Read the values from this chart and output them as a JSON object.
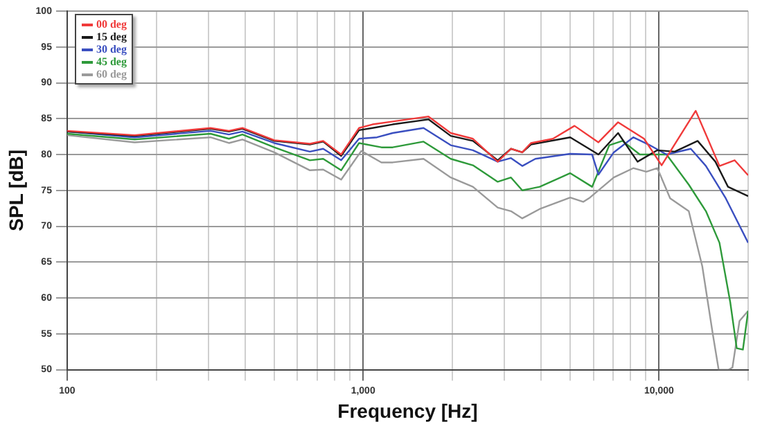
{
  "chart_data": {
    "type": "line",
    "xlabel": "Frequency [Hz]",
    "ylabel": "SPL [dB]",
    "log": "x",
    "xlim": [
      100,
      20000
    ],
    "ylim": [
      50,
      100
    ],
    "xticks": [
      {
        "value": 100,
        "label": "100"
      },
      {
        "value": 200,
        "label": null
      },
      {
        "value": 300,
        "label": null
      },
      {
        "value": 400,
        "label": null
      },
      {
        "value": 500,
        "label": null
      },
      {
        "value": 600,
        "label": null
      },
      {
        "value": 700,
        "label": null
      },
      {
        "value": 800,
        "label": null
      },
      {
        "value": 900,
        "label": null
      },
      {
        "value": 1000,
        "label": "1,000"
      },
      {
        "value": 2000,
        "label": null
      },
      {
        "value": 3000,
        "label": null
      },
      {
        "value": 4000,
        "label": null
      },
      {
        "value": 5000,
        "label": null
      },
      {
        "value": 6000,
        "label": null
      },
      {
        "value": 7000,
        "label": null
      },
      {
        "value": 8000,
        "label": null
      },
      {
        "value": 9000,
        "label": null
      },
      {
        "value": 10000,
        "label": "10,000"
      },
      {
        "value": 20000,
        "label": null
      }
    ],
    "yticks": [
      50,
      55,
      60,
      65,
      70,
      75,
      80,
      85,
      90,
      95,
      100
    ],
    "grid": true,
    "legend": "top left",
    "marker": "none",
    "line_style": "solid",
    "series": [
      {
        "name": "00 deg",
        "color": "#f03a3a",
        "x": [
          100,
          169,
          305,
          352,
          391,
          501,
          661,
          733,
          843,
          969,
          1076,
          1259,
          1663,
          1977,
          2350,
          2850,
          3160,
          3450,
          3690,
          4380,
          5180,
          6240,
          7270,
          8900,
          10200,
          13300,
          16000,
          18000,
          20000
        ],
        "values": [
          83.3,
          82.7,
          83.7,
          83.3,
          83.7,
          82.0,
          81.5,
          81.9,
          80.0,
          83.7,
          84.2,
          84.6,
          85.3,
          83.0,
          82.2,
          79.0,
          80.8,
          80.3,
          81.6,
          82.2,
          84.0,
          81.7,
          84.5,
          82.2,
          78.5,
          86.1,
          78.4,
          79.2,
          77.1
        ]
      },
      {
        "name": "15 deg",
        "color": "#1a1a1a",
        "x": [
          100,
          169,
          305,
          352,
          391,
          501,
          661,
          733,
          843,
          969,
          1076,
          1259,
          1663,
          1977,
          2350,
          2850,
          3160,
          3450,
          3690,
          5010,
          6240,
          7270,
          8460,
          9870,
          11300,
          13500,
          15500,
          17100,
          20000
        ],
        "values": [
          83.2,
          82.6,
          83.6,
          83.2,
          83.6,
          81.9,
          81.4,
          81.8,
          79.8,
          83.4,
          83.7,
          84.2,
          84.9,
          82.6,
          81.9,
          79.2,
          80.8,
          80.3,
          81.4,
          82.4,
          80.0,
          83.0,
          79.0,
          80.6,
          80.4,
          81.9,
          79.0,
          75.5,
          74.2
        ]
      },
      {
        "name": "30 deg",
        "color": "#3a4fc0",
        "x": [
          100,
          169,
          305,
          352,
          391,
          501,
          661,
          733,
          843,
          969,
          1114,
          1259,
          1600,
          1977,
          2350,
          2850,
          3160,
          3450,
          3820,
          5010,
          5940,
          6240,
          7030,
          8180,
          9210,
          10600,
          12800,
          14400,
          16800,
          20000
        ],
        "values": [
          83.2,
          82.4,
          83.3,
          82.8,
          83.2,
          81.6,
          80.4,
          80.8,
          79.2,
          82.2,
          82.4,
          83.0,
          83.7,
          81.3,
          80.6,
          79.0,
          79.5,
          78.4,
          79.4,
          80.1,
          80.0,
          77.2,
          80.3,
          82.4,
          81.4,
          80.0,
          80.8,
          78.4,
          73.9,
          67.7
        ]
      },
      {
        "name": "45 deg",
        "color": "#2e9a3a",
        "x": [
          100,
          169,
          305,
          352,
          391,
          501,
          661,
          733,
          843,
          969,
          1153,
          1259,
          1600,
          1977,
          2350,
          2850,
          3160,
          3450,
          3950,
          5010,
          5940,
          6790,
          7520,
          8610,
          10600,
          12600,
          14400,
          16000,
          17400,
          18300,
          19200,
          20000
        ],
        "values": [
          82.9,
          82.1,
          82.9,
          82.2,
          82.8,
          81.0,
          79.2,
          79.4,
          77.8,
          81.6,
          81.0,
          81.0,
          81.8,
          79.4,
          78.5,
          76.2,
          76.8,
          75.0,
          75.5,
          77.4,
          75.5,
          81.3,
          81.9,
          80.0,
          80.0,
          75.8,
          72.1,
          67.7,
          59.4,
          53.0,
          52.8,
          58.2
        ]
      },
      {
        "name": "60 deg",
        "color": "#9a9a9a",
        "x": [
          100,
          169,
          305,
          352,
          391,
          501,
          661,
          733,
          843,
          986,
          1153,
          1259,
          1600,
          1977,
          2350,
          2850,
          3160,
          3450,
          3950,
          5010,
          5550,
          5840,
          7030,
          8180,
          9060,
          9870,
          10900,
          12600,
          14000,
          15200,
          15900,
          17200,
          17700,
          18700,
          20000
        ],
        "values": [
          82.7,
          81.7,
          82.4,
          81.6,
          82.1,
          80.3,
          77.8,
          77.9,
          76.5,
          80.5,
          78.9,
          78.9,
          79.4,
          76.8,
          75.5,
          72.6,
          72.1,
          71.1,
          72.4,
          74.0,
          73.4,
          74.0,
          76.8,
          78.1,
          77.6,
          78.1,
          73.9,
          72.1,
          64.4,
          54.9,
          50.0,
          50.0,
          50.3,
          56.8,
          58.2
        ]
      }
    ]
  }
}
